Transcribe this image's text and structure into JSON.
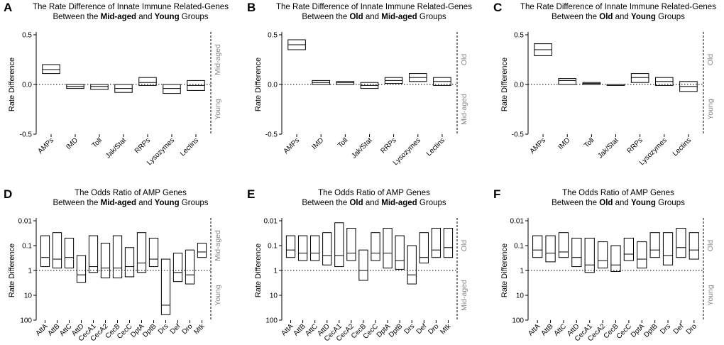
{
  "chart_data": [
    {
      "type": "box",
      "letter": "A",
      "title_line1": "The Rate Difference of Innate Immune Related-Genes",
      "title_parts": [
        "Between the ",
        "Mid-aged",
        " and ",
        "Young",
        " Groups"
      ],
      "ylabel": "Rate Difference",
      "ylim": [
        -0.5,
        0.5
      ],
      "scale": "linear",
      "yticks": [
        "0.5",
        "0.0",
        "-0.5"
      ],
      "ytick_values": [
        0.5,
        0,
        -0.5
      ],
      "top_group": "Mid-aged",
      "bottom_group": "Young",
      "categories": [
        "AMPs",
        "IMD",
        "Toll",
        "Jak/Stat",
        "RRPs",
        "Lysozymes",
        "Lectins"
      ],
      "boxes": [
        [
          0.11,
          0.15,
          0.2
        ],
        [
          -0.04,
          -0.02,
          0.0
        ],
        [
          -0.05,
          -0.02,
          0.0
        ],
        [
          -0.08,
          -0.04,
          0.0
        ],
        [
          -0.01,
          0.02,
          0.07
        ],
        [
          -0.09,
          -0.04,
          0.0
        ],
        [
          -0.06,
          -0.01,
          0.04
        ]
      ]
    },
    {
      "type": "box",
      "letter": "B",
      "title_line1": "The Rate Difference of Innate Immune Related-Genes",
      "title_parts": [
        "Between the ",
        "Old",
        " and ",
        "Mid-aged",
        " Groups"
      ],
      "ylabel": "Rate Difference",
      "ylim": [
        -0.5,
        0.5
      ],
      "scale": "linear",
      "yticks": [
        "0.5",
        "0.0",
        "-0.5"
      ],
      "ytick_values": [
        0.5,
        0,
        -0.5
      ],
      "top_group": "Old",
      "bottom_group": "Mid-aged",
      "categories": [
        "AMPs",
        "IMD",
        "Toll",
        "Jak/Stat",
        "RRPs",
        "Lysozymes",
        "Lectins"
      ],
      "boxes": [
        [
          0.35,
          0.4,
          0.45
        ],
        [
          0.0,
          0.02,
          0.04
        ],
        [
          0.0,
          0.02,
          0.03
        ],
        [
          -0.04,
          -0.01,
          0.02
        ],
        [
          0.01,
          0.04,
          0.07
        ],
        [
          0.03,
          0.07,
          0.11
        ],
        [
          -0.01,
          0.03,
          0.07
        ]
      ]
    },
    {
      "type": "box",
      "letter": "C",
      "title_line1": "The Rate Difference of Innate Immune Related-Genes",
      "title_parts": [
        "Between the ",
        "Old",
        " and ",
        "Young",
        " Groups"
      ],
      "ylabel": "Rate Difference",
      "ylim": [
        -0.5,
        0.5
      ],
      "scale": "linear",
      "yticks": [
        "0.5",
        "0.0",
        "-0.5"
      ],
      "ytick_values": [
        0.5,
        0,
        -0.5
      ],
      "top_group": "Old",
      "bottom_group": "Young",
      "categories": [
        "AMPs",
        "IMD",
        "Toll",
        "Jak/Stat",
        "RRPs",
        "Lysozymes",
        "Lectins"
      ],
      "boxes": [
        [
          0.29,
          0.35,
          0.41
        ],
        [
          0.0,
          0.04,
          0.06
        ],
        [
          0.0,
          0.01,
          0.02
        ],
        [
          -0.01,
          0.0,
          0.0
        ],
        [
          0.02,
          0.07,
          0.11
        ],
        [
          -0.01,
          0.03,
          0.07
        ],
        [
          -0.07,
          -0.02,
          0.03
        ]
      ]
    },
    {
      "type": "box",
      "letter": "D",
      "title_line1": "The Odds Ratio of AMP Genes",
      "title_parts": [
        "Between the ",
        "Mid-aged",
        " and ",
        "Young",
        " Groups"
      ],
      "ylabel": "Rate Difference",
      "ylim": [
        0.01,
        100
      ],
      "scale": "log_inverted",
      "yticks": [
        "0.01",
        "0.1",
        "1",
        "10",
        "100"
      ],
      "ytick_values": [
        0.01,
        0.1,
        1,
        10,
        100
      ],
      "top_group": "Mid-aged",
      "bottom_group": "Young",
      "categories": [
        "AttA",
        "AttB",
        "AttC",
        "AttD",
        "CecA1",
        "CecA2",
        "CecB",
        "CecC",
        "DptA",
        "DptB",
        "Drs",
        "Def",
        "Dro",
        "Mtk"
      ],
      "boxes": [
        [
          0.04,
          0.3,
          0.7
        ],
        [
          0.03,
          0.35,
          0.8
        ],
        [
          0.05,
          0.3,
          0.8
        ],
        [
          0.25,
          1.5,
          3.0
        ],
        [
          0.04,
          0.7,
          1.2
        ],
        [
          0.08,
          0.8,
          2.0
        ],
        [
          0.04,
          0.8,
          2.0
        ],
        [
          0.12,
          0.7,
          1.8
        ],
        [
          0.03,
          0.5,
          1.2
        ],
        [
          0.05,
          0.35,
          0.7
        ],
        [
          0.35,
          25,
          60
        ],
        [
          0.2,
          1.2,
          2.8
        ],
        [
          0.15,
          1.5,
          3.5
        ],
        [
          0.08,
          0.18,
          0.3
        ]
      ]
    },
    {
      "type": "box",
      "letter": "E",
      "title_line1": "The Odds Ratio of AMP Genes",
      "title_parts": [
        "Between the ",
        "Old",
        " and ",
        "Mid-aged",
        " Groups"
      ],
      "ylabel": "Rate Difference",
      "ylim": [
        0.01,
        100
      ],
      "scale": "log_inverted",
      "yticks": [
        "0.01",
        "0.1",
        "1",
        "10",
        "100"
      ],
      "ytick_values": [
        0.01,
        0.1,
        1,
        10,
        100
      ],
      "top_group": "Old",
      "bottom_group": "Mid-aged",
      "categories": [
        "AttA",
        "AttB",
        "AttC",
        "AttD",
        "CecA1",
        "CecA2",
        "CecB",
        "CecC",
        "DptA",
        "DptB",
        "Drs",
        "Def",
        "Dro",
        "Mtk"
      ],
      "boxes": [
        [
          0.04,
          0.15,
          0.3
        ],
        [
          0.04,
          0.2,
          0.4
        ],
        [
          0.04,
          0.2,
          0.4
        ],
        [
          0.03,
          0.25,
          0.6
        ],
        [
          0.012,
          0.25,
          0.7
        ],
        [
          0.02,
          0.2,
          0.4
        ],
        [
          0.15,
          1.0,
          2.5
        ],
        [
          0.03,
          0.2,
          0.4
        ],
        [
          0.02,
          0.2,
          0.8
        ],
        [
          0.04,
          0.4,
          0.9
        ],
        [
          0.1,
          1.5,
          3.5
        ],
        [
          0.03,
          0.3,
          0.5
        ],
        [
          0.02,
          0.15,
          0.3
        ],
        [
          0.02,
          0.12,
          0.3
        ]
      ]
    },
    {
      "type": "box",
      "letter": "F",
      "title_line1": "The Odds Ratio of AMP Genes",
      "title_parts": [
        "Between the ",
        "Old",
        " and ",
        "Young",
        " Groups"
      ],
      "ylabel": "Rate Difference",
      "ylim": [
        0.01,
        100
      ],
      "scale": "log_inverted",
      "yticks": [
        "0.01",
        "0.1",
        "1",
        "10",
        "100"
      ],
      "ytick_values": [
        0.01,
        0.1,
        1,
        10,
        100
      ],
      "top_group": "Old",
      "bottom_group": "Young",
      "categories": [
        "AttA",
        "AttB",
        "AttC",
        "AttD",
        "CecA1",
        "CecA2",
        "CecB",
        "CecC",
        "DptA",
        "DptB",
        "Drs",
        "Def",
        "Dro"
      ],
      "boxes": [
        [
          0.04,
          0.15,
          0.3
        ],
        [
          0.04,
          0.2,
          0.45
        ],
        [
          0.03,
          0.18,
          0.3
        ],
        [
          0.05,
          0.3,
          0.7
        ],
        [
          0.05,
          0.6,
          1.2
        ],
        [
          0.07,
          0.4,
          0.8
        ],
        [
          0.1,
          0.6,
          1.1
        ],
        [
          0.05,
          0.22,
          0.4
        ],
        [
          0.07,
          0.35,
          0.8
        ],
        [
          0.03,
          0.15,
          0.3
        ],
        [
          0.03,
          0.25,
          0.6
        ],
        [
          0.02,
          0.12,
          0.3
        ],
        [
          0.03,
          0.15,
          0.35
        ]
      ]
    }
  ]
}
